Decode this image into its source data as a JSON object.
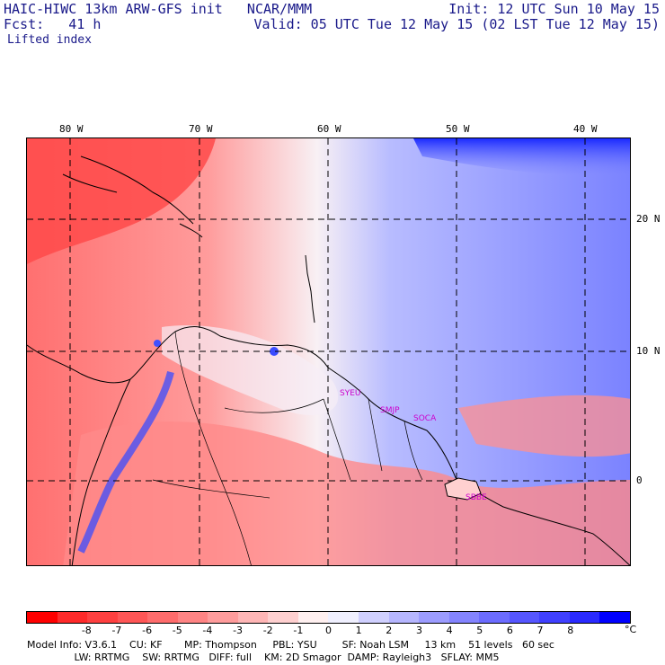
{
  "header": {
    "title": "HAIC-HIWC 13km ARW-GFS init   NCAR/MMM",
    "init": "Init: 12 UTC Sun 10 May 15",
    "fcst": "Fcst:   41 h",
    "valid": "Valid: 05 UTC Tue 12 May 15 (02 LST Tue 12 May 15)",
    "field": "Lifted index"
  },
  "map": {
    "lon_labels": [
      "80 W",
      "70 W",
      "60 W",
      "50 W",
      "40 W"
    ],
    "lat_labels": [
      "20 N",
      "10 N",
      "0"
    ],
    "stations": [
      "SYEU",
      "SMJP",
      "SOCA",
      "SBBE"
    ]
  },
  "colorbar": {
    "labels": [
      "-8",
      "-7",
      "-6",
      "-5",
      "-4",
      "-3",
      "-2",
      "-1",
      "0",
      "1",
      "2",
      "3",
      "4",
      "5",
      "6",
      "7",
      "8"
    ],
    "unit": "°C",
    "colors": [
      "#ff0000",
      "#ff2a2a",
      "#ff4040",
      "#ff5656",
      "#ff6c6c",
      "#ff8484",
      "#ff9c9c",
      "#ffb6b6",
      "#ffd0d0",
      "#fff0f0",
      "#f0f0ff",
      "#d0d0ff",
      "#b6b6ff",
      "#9c9cff",
      "#8484ff",
      "#6c6cff",
      "#5656ff",
      "#4040ff",
      "#2a2aff",
      "#0000ff"
    ]
  },
  "footer": {
    "line1": "Model Info: V3.6.1    CU: KF       MP: Thompson     PBL: YSU        SF: Noah LSM     13 km    51 levels   60 sec",
    "line2": "               LW: RRTMG    SW: RRTMG   DIFF: full    KM: 2D Smagor  DAMP: Rayleigh3   SFLAY: MM5"
  }
}
